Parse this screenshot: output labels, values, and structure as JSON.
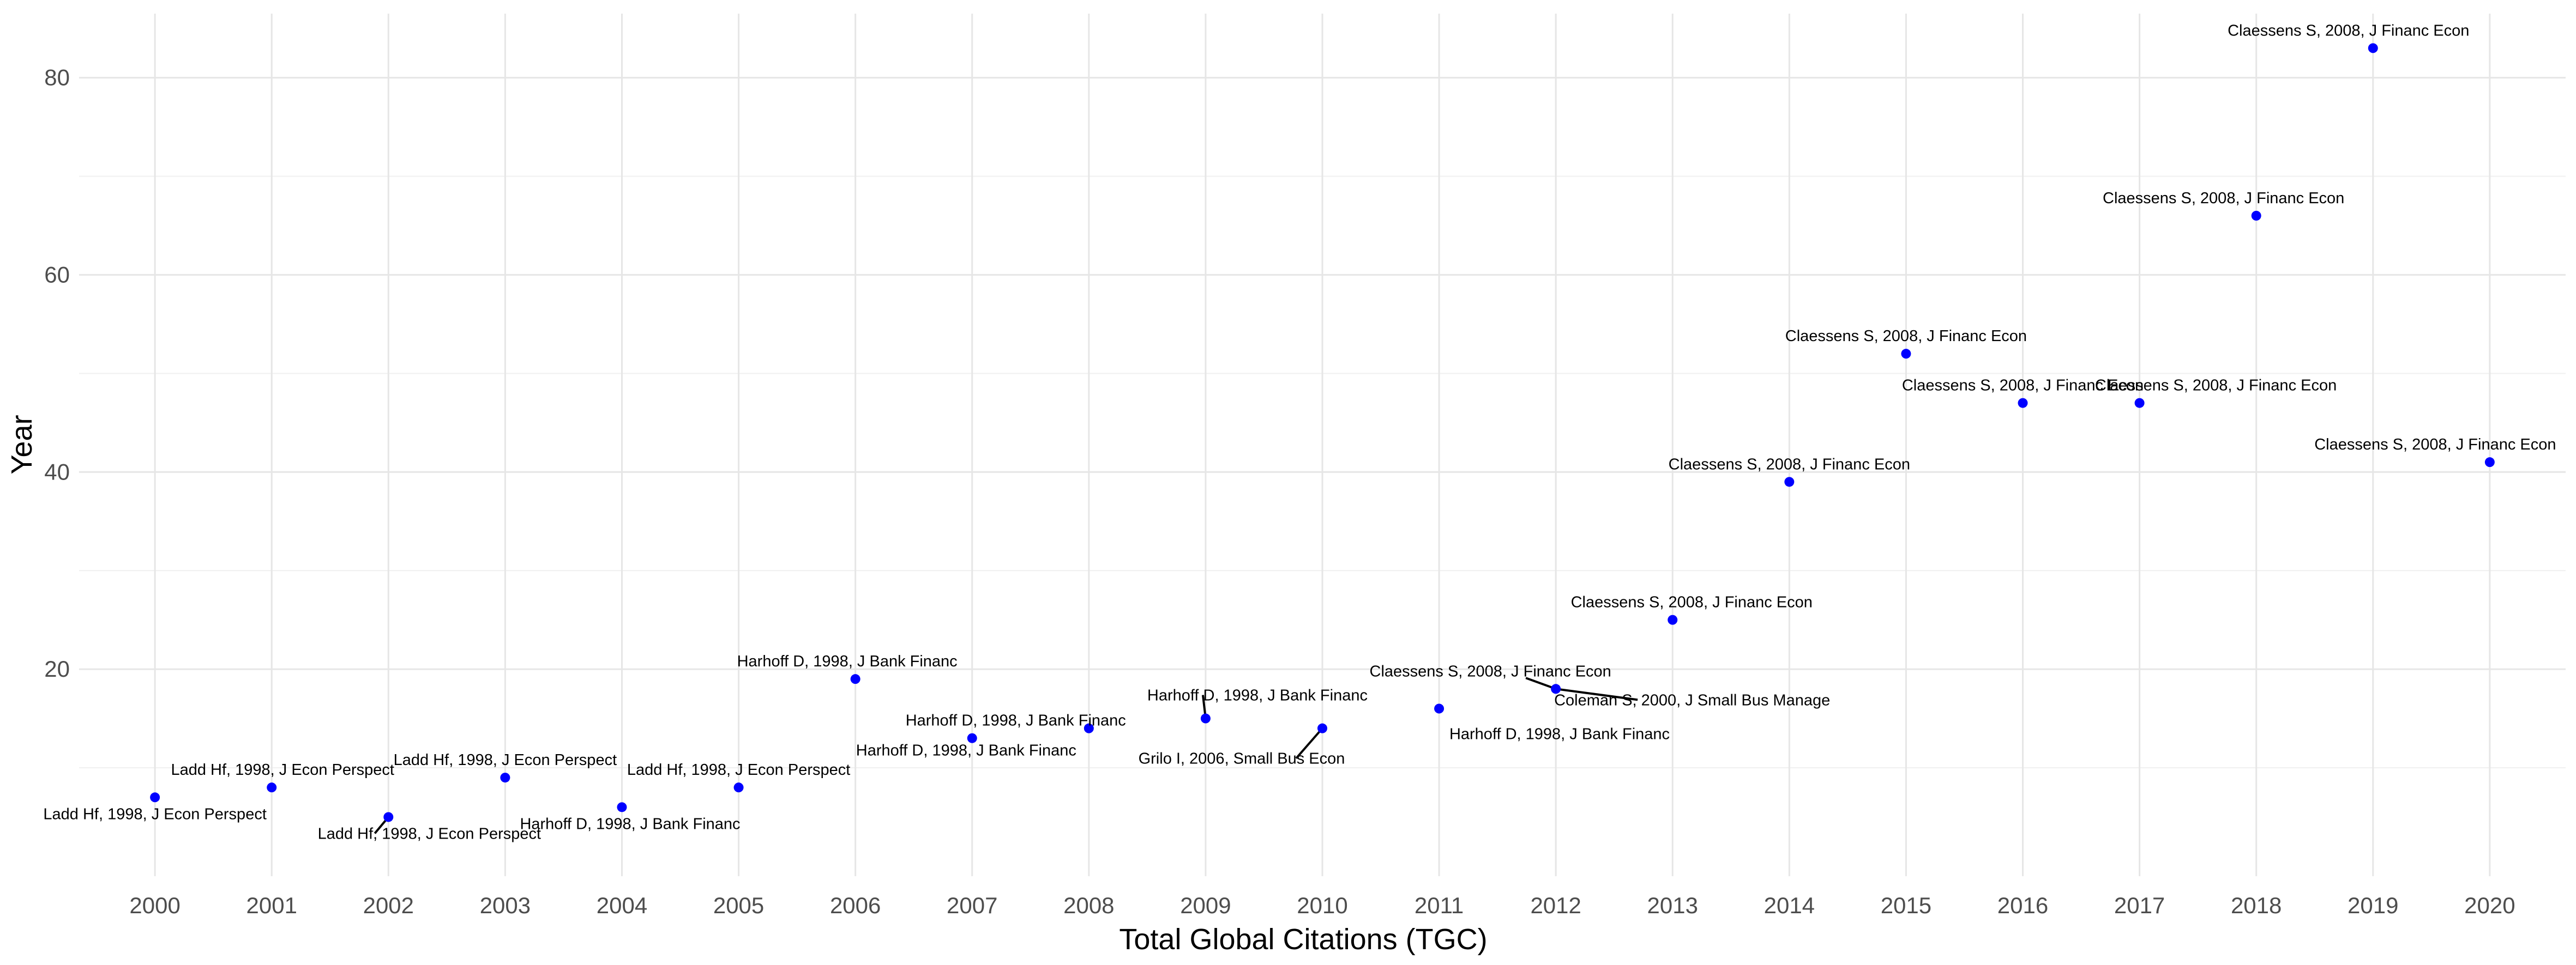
{
  "chart_data": {
    "type": "scatter",
    "xlabel": "Total Global Citations (TGC)",
    "ylabel": "Year",
    "xlim": [
      1999.35,
      2020.65
    ],
    "ylim": [
      -1.0,
      86.5
    ],
    "x_ticks": [
      "2000",
      "2001",
      "2002",
      "2003",
      "2004",
      "2005",
      "2006",
      "2007",
      "2008",
      "2009",
      "2010",
      "2011",
      "2012",
      "2013",
      "2014",
      "2015",
      "2016",
      "2017",
      "2018",
      "2019",
      "2020"
    ],
    "y_ticks": [
      "20",
      "40",
      "60",
      "80"
    ],
    "grid": true,
    "point_color": "#0000ff",
    "points": [
      {
        "x": 2000,
        "y": 7,
        "label": "Ladd Hf, 1998, J Econ Perspect"
      },
      {
        "x": 2001,
        "y": 8,
        "label": "Ladd Hf, 1998, J Econ Perspect"
      },
      {
        "x": 2002,
        "y": 5,
        "label": "Ladd Hf, 1998, J Econ Perspect"
      },
      {
        "x": 2003,
        "y": 9,
        "label": "Ladd Hf, 1998, J Econ Perspect"
      },
      {
        "x": 2004,
        "y": 6,
        "label": "Harhoff D, 1998, J Bank Financ"
      },
      {
        "x": 2005,
        "y": 8,
        "label": "Ladd Hf, 1998, J Econ Perspect"
      },
      {
        "x": 2006,
        "y": 19,
        "label": "Harhoff D, 1998, J Bank Financ"
      },
      {
        "x": 2007,
        "y": 13,
        "label": "Harhoff D, 1998, J Bank Financ"
      },
      {
        "x": 2008,
        "y": 14,
        "label": "Harhoff D, 1998, J Bank Financ"
      },
      {
        "x": 2009,
        "y": 15,
        "label": "Harhoff D, 1998, J Bank Financ"
      },
      {
        "x": 2010,
        "y": 14,
        "label": "Grilo I, 2006, Small Bus Econ"
      },
      {
        "x": 2011,
        "y": 16,
        "label": "Harhoff D, 1998, J Bank Financ"
      },
      {
        "x": 2012,
        "y": 18,
        "label": "Coleman S, 2000, J Small Bus Manage"
      },
      {
        "x": 2013,
        "y": 25,
        "label": "Claessens S, 2008, J Financ Econ"
      },
      {
        "x": 2014,
        "y": 39,
        "label": "Claessens S, 2008, J Financ Econ"
      },
      {
        "x": 2015,
        "y": 52,
        "label": "Claessens S, 2008, J Financ Econ"
      },
      {
        "x": 2016,
        "y": 47,
        "label": "Claessens S, 2008, J Financ Econ"
      },
      {
        "x": 2017,
        "y": 47,
        "label": "Claessens S, 2008, J Financ Econ"
      },
      {
        "x": 2018,
        "y": 66,
        "label": "Claessens S, 2008, J Financ Econ"
      },
      {
        "x": 2019,
        "y": 83,
        "label": "Claessens S, 2008, J Financ Econ"
      },
      {
        "x": 2020,
        "y": 41,
        "label": "Claessens S, 2008, J Financ Econ"
      }
    ],
    "extra_labels": [
      {
        "x": 2012,
        "y": 18,
        "label": "Claessens S, 2008, J Financ Econ"
      },
      {
        "x": 2010,
        "y": 14,
        "label": "Harhoff D, 1998, J Bank Financ"
      }
    ]
  }
}
